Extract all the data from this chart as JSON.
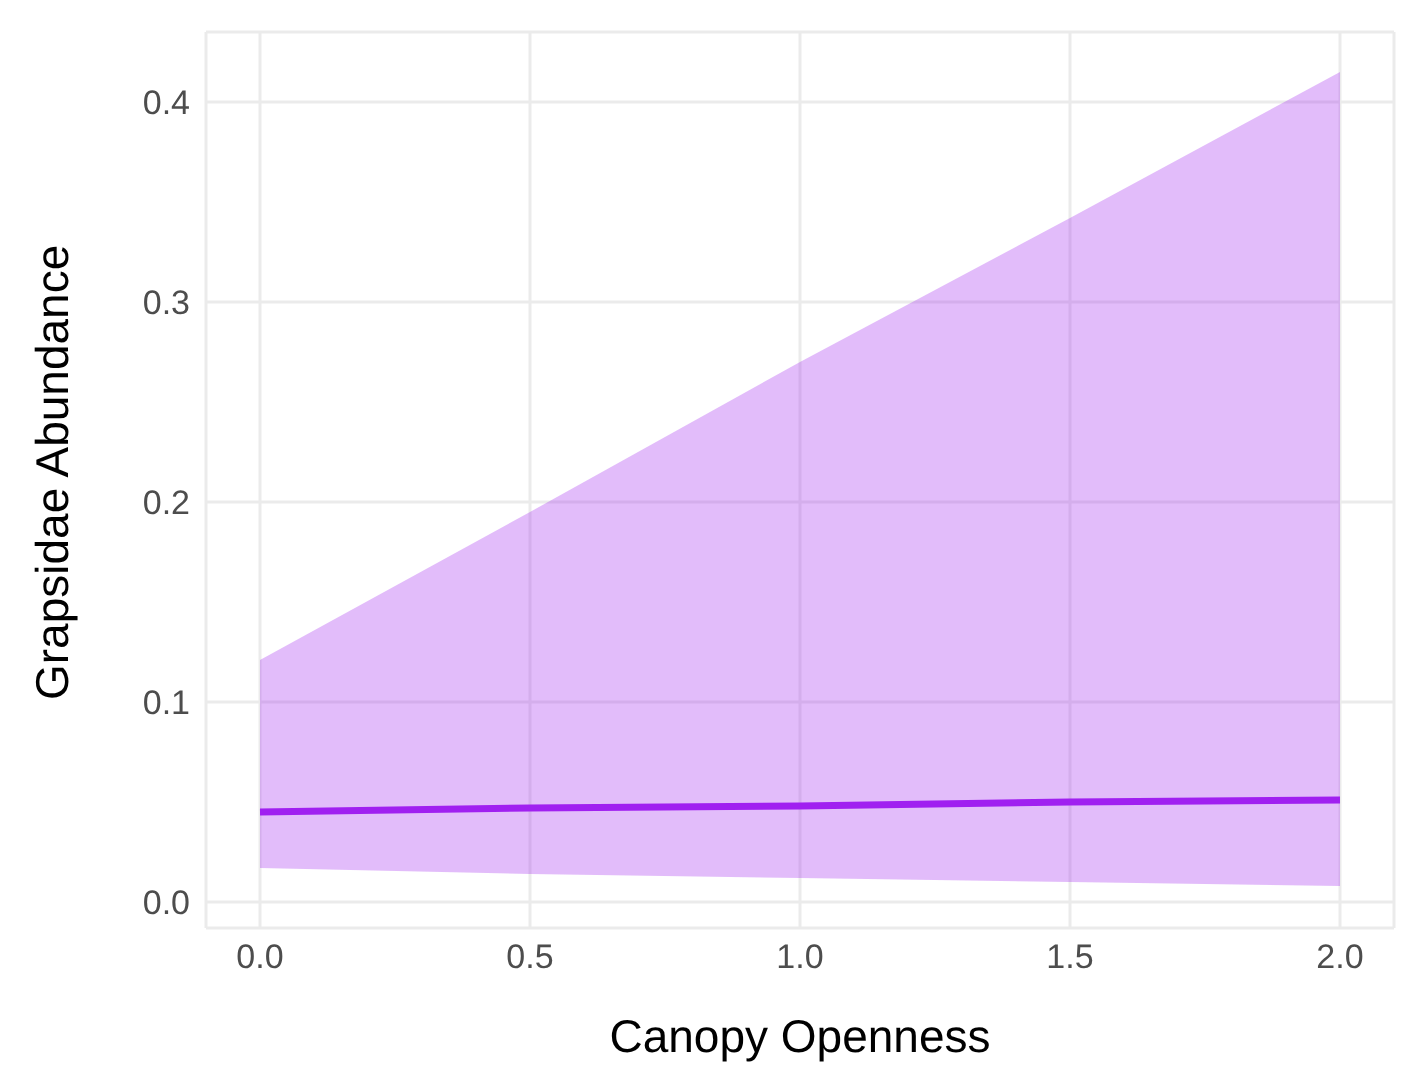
{
  "chart_data": {
    "type": "line",
    "xlabel": "Canopy Openness",
    "ylabel": "Grapsidae Abundance",
    "x": [
      0,
      0.5,
      1,
      1.5,
      2
    ],
    "series": [
      {
        "color": "#a020f0",
        "values": [
          0.045,
          0.047,
          0.048,
          0.05,
          0.051
        ],
        "lower": [
          0.017,
          0.014,
          0.012,
          0.01,
          0.008
        ],
        "upper": [
          0.121,
          0.195,
          0.27,
          0.342,
          0.415
        ]
      }
    ],
    "xlim": [
      -0.1,
      2.1
    ],
    "xticks": [
      {
        "value": 0,
        "label": "0.0"
      },
      0.5,
      {
        "value": 1,
        "label": "1.0"
      },
      1.5,
      {
        "value": 2,
        "label": "2.0"
      }
    ],
    "ylim": [
      -0.013,
      0.435
    ],
    "yticks": [
      {
        "value": 0,
        "label": "0.0"
      },
      0.1,
      0.2,
      0.3,
      0.4
    ],
    "grid": true,
    "marker": "none",
    "line_style": "solid",
    "legend": false
  }
}
